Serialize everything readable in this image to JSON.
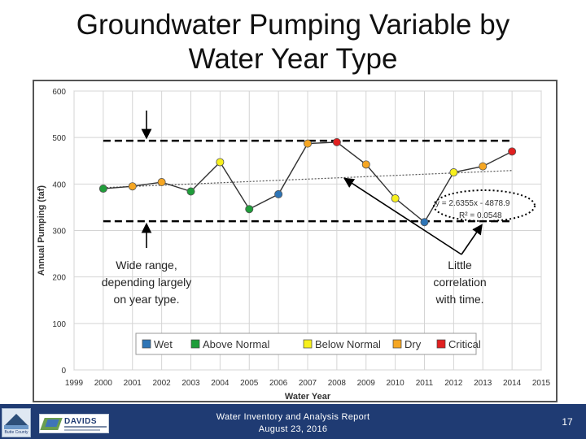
{
  "slide": {
    "title_line1": "Groundwater Pumping Variable by",
    "title_line2": "Water Year Type",
    "footer_line1": "Water Inventory and Analysis Report",
    "footer_line2": "August 23, 2016",
    "page_number": "17",
    "footer_color": "#1f3b73",
    "logo_left_text": "Butte County",
    "logo_right_text": "DAVIDS"
  },
  "annotations": {
    "left_note": [
      "Wide range,",
      "depending largely",
      "on year type."
    ],
    "right_note": [
      "Little",
      "correlation",
      "with time."
    ],
    "upper_band_value": 493,
    "lower_band_value": 320
  },
  "chart_data": {
    "type": "scatter",
    "xlabel": "Water Year",
    "ylabel": "Annual Pumping (taf)",
    "xlim": [
      1999,
      2015
    ],
    "ylim": [
      0,
      600
    ],
    "xticks": [
      1999,
      2000,
      2001,
      2002,
      2003,
      2004,
      2005,
      2006,
      2007,
      2008,
      2009,
      2010,
      2011,
      2012,
      2013,
      2014,
      2015
    ],
    "yticks": [
      0,
      100,
      200,
      300,
      400,
      500,
      600
    ],
    "grid": true,
    "legend_position": "bottom",
    "categories_legend": [
      {
        "name": "Wet",
        "color": "#2e75b6"
      },
      {
        "name": "Above Normal",
        "color": "#1f9d3a"
      },
      {
        "name": "Below Normal",
        "color": "#f7f01c"
      },
      {
        "name": "Dry",
        "color": "#f5a623"
      },
      {
        "name": "Critical",
        "color": "#e02020"
      }
    ],
    "points": [
      {
        "x": 2000,
        "y": 390,
        "type": "Above Normal"
      },
      {
        "x": 2001,
        "y": 395,
        "type": "Dry"
      },
      {
        "x": 2002,
        "y": 404,
        "type": "Dry"
      },
      {
        "x": 2003,
        "y": 384,
        "type": "Above Normal"
      },
      {
        "x": 2004,
        "y": 447,
        "type": "Below Normal"
      },
      {
        "x": 2005,
        "y": 346,
        "type": "Above Normal"
      },
      {
        "x": 2006,
        "y": 378,
        "type": "Wet"
      },
      {
        "x": 2007,
        "y": 487,
        "type": "Dry"
      },
      {
        "x": 2008,
        "y": 490,
        "type": "Critical"
      },
      {
        "x": 2009,
        "y": 442,
        "type": "Dry"
      },
      {
        "x": 2010,
        "y": 369,
        "type": "Below Normal"
      },
      {
        "x": 2011,
        "y": 318,
        "type": "Wet"
      },
      {
        "x": 2012,
        "y": 425,
        "type": "Below Normal"
      },
      {
        "x": 2013,
        "y": 438,
        "type": "Dry"
      },
      {
        "x": 2014,
        "y": 470,
        "type": "Critical"
      }
    ],
    "trendline": {
      "equation": "y = 2.6355x - 4878.9",
      "r_squared": "R² = 0.0548",
      "slope": 2.6355,
      "intercept": -4878.9
    }
  }
}
